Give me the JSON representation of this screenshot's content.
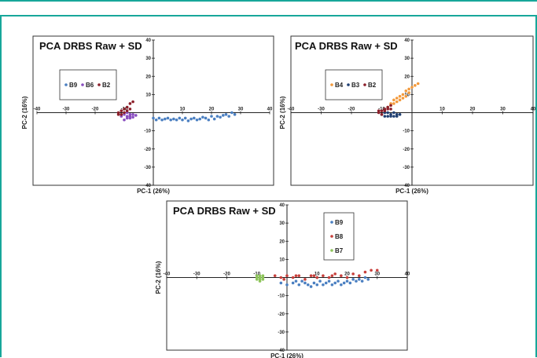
{
  "chart_data": [
    {
      "type": "scatter",
      "title": "PCA DRBS Raw + SD",
      "xlabel": "PC-1 (26%)",
      "ylabel": "PC-2 (16%)",
      "xlim": [
        -40,
        40
      ],
      "ylim": [
        -40,
        40
      ],
      "xticks": [
        "-40",
        "-30",
        "-20",
        "-10",
        "10",
        "20",
        "30",
        "40"
      ],
      "yticks": [
        "40",
        "30",
        "20",
        "10",
        "-10",
        "-20",
        "-30",
        "-40"
      ],
      "legend_position": "top-left",
      "series": [
        {
          "name": "B9",
          "color": "#4a7fc1",
          "points": [
            [
              0,
              -3
            ],
            [
              1,
              -4
            ],
            [
              2,
              -3
            ],
            [
              3,
              -4
            ],
            [
              4,
              -3.5
            ],
            [
              5,
              -3
            ],
            [
              6,
              -4
            ],
            [
              7,
              -3.5
            ],
            [
              8,
              -4
            ],
            [
              9,
              -3
            ],
            [
              10,
              -4
            ],
            [
              11,
              -3
            ],
            [
              12,
              -4.5
            ],
            [
              13,
              -3.5
            ],
            [
              14,
              -3
            ],
            [
              15,
              -4
            ],
            [
              16,
              -3.5
            ],
            [
              17,
              -2.5
            ],
            [
              18,
              -3
            ],
            [
              19,
              -4
            ],
            [
              20,
              -2
            ],
            [
              21,
              -3.5
            ],
            [
              22,
              -2
            ],
            [
              23,
              -2.5
            ],
            [
              24,
              -1.5
            ],
            [
              25,
              -1
            ],
            [
              26,
              -2
            ],
            [
              27,
              0
            ],
            [
              28,
              -1
            ]
          ]
        },
        {
          "name": "B6",
          "color": "#8a4fc0",
          "points": [
            [
              -11,
              -2
            ],
            [
              -10,
              -1
            ],
            [
              -9,
              -3
            ],
            [
              -8,
              -2
            ],
            [
              -7,
              -1
            ],
            [
              -10,
              -4
            ],
            [
              -9,
              -2
            ],
            [
              -8,
              -3
            ],
            [
              -7,
              -2.5
            ],
            [
              -6,
              -1.5
            ],
            [
              -9,
              0
            ],
            [
              -8,
              -1
            ]
          ]
        },
        {
          "name": "B2",
          "color": "#8b1f2a",
          "points": [
            [
              -12,
              0
            ],
            [
              -11,
              1
            ],
            [
              -10,
              2
            ],
            [
              -9,
              3
            ],
            [
              -8,
              5
            ],
            [
              -7,
              6
            ],
            [
              -11,
              -1
            ],
            [
              -10,
              0
            ],
            [
              -9,
              1
            ],
            [
              -12,
              -1
            ],
            [
              -8,
              2
            ]
          ]
        }
      ]
    },
    {
      "type": "scatter",
      "title": "PCA DRBS Raw + SD",
      "xlabel": "PC-1 (26%)",
      "ylabel": "PC-2 (16%)",
      "xlim": [
        -40,
        40
      ],
      "ylim": [
        -40,
        40
      ],
      "xticks": [
        "-40",
        "-30",
        "-20",
        "-10",
        "10",
        "20",
        "30",
        "40"
      ],
      "yticks": [
        "40",
        "30",
        "20",
        "10",
        "-10",
        "-20",
        "-30",
        "-40"
      ],
      "legend_position": "top-left",
      "series": [
        {
          "name": "B4",
          "color": "#f39a3c",
          "points": [
            [
              -8,
              3
            ],
            [
              -7,
              5
            ],
            [
              -6,
              7
            ],
            [
              -5,
              8
            ],
            [
              -4,
              9
            ],
            [
              -3,
              10
            ],
            [
              -2,
              12
            ],
            [
              -1,
              13
            ],
            [
              0,
              14
            ],
            [
              1,
              15
            ],
            [
              2,
              16
            ],
            [
              -6,
              5
            ],
            [
              -4,
              7
            ],
            [
              -3,
              8
            ],
            [
              -2,
              9
            ],
            [
              -1,
              11
            ],
            [
              -5,
              6
            ],
            [
              -7,
              4
            ]
          ]
        },
        {
          "name": "B3",
          "color": "#1f3f72",
          "points": [
            [
              -10,
              -1
            ],
            [
              -9,
              0
            ],
            [
              -8,
              -2
            ],
            [
              -7,
              -1
            ],
            [
              -6,
              -2
            ],
            [
              -5,
              -1
            ],
            [
              -9,
              -2
            ],
            [
              -8,
              0
            ],
            [
              -7,
              -2
            ],
            [
              -6,
              0
            ],
            [
              -5,
              -2
            ],
            [
              -4,
              -1
            ]
          ]
        },
        {
          "name": "B2",
          "color": "#8b1f2a",
          "points": [
            [
              -11,
              0
            ],
            [
              -10,
              1
            ],
            [
              -9,
              2
            ],
            [
              -8,
              3
            ],
            [
              -7,
              4
            ],
            [
              -10,
              -1
            ],
            [
              -9,
              1
            ],
            [
              -8,
              2
            ],
            [
              -11,
              1
            ],
            [
              -7,
              2
            ]
          ]
        }
      ]
    },
    {
      "type": "scatter",
      "title": "PCA DRBS Raw + SD",
      "xlabel": "PC-1 (26%)",
      "ylabel": "PC-2 (16%)",
      "xlim": [
        -40,
        40
      ],
      "ylim": [
        -40,
        40
      ],
      "xticks": [
        "-40",
        "-30",
        "-20",
        "-10",
        "10",
        "20",
        "30",
        "40"
      ],
      "yticks": [
        "40",
        "30",
        "20",
        "10",
        "-10",
        "-20",
        "-30",
        "-40"
      ],
      "legend_position": "top-right",
      "series": [
        {
          "name": "B9",
          "color": "#4a7fc1",
          "points": [
            [
              -2,
              -3
            ],
            [
              0,
              -4
            ],
            [
              2,
              -3
            ],
            [
              4,
              -4
            ],
            [
              6,
              -3
            ],
            [
              8,
              -5
            ],
            [
              9,
              -3
            ],
            [
              10,
              -4
            ],
            [
              11,
              -2
            ],
            [
              12,
              -4
            ],
            [
              13,
              -3
            ],
            [
              14,
              -2
            ],
            [
              15,
              -4
            ],
            [
              16,
              -3
            ],
            [
              17,
              -2
            ],
            [
              18,
              -4
            ],
            [
              19,
              -3
            ],
            [
              20,
              -2
            ],
            [
              21,
              -3
            ],
            [
              22,
              -1
            ],
            [
              23,
              -2
            ],
            [
              24,
              -1
            ],
            [
              25,
              -2
            ],
            [
              26,
              0
            ],
            [
              27,
              -1
            ],
            [
              5,
              -2
            ],
            [
              7,
              -4
            ],
            [
              3,
              -2
            ]
          ]
        },
        {
          "name": "B8",
          "color": "#c8403c",
          "points": [
            [
              -4,
              1
            ],
            [
              -2,
              0
            ],
            [
              0,
              1
            ],
            [
              2,
              0
            ],
            [
              4,
              1
            ],
            [
              6,
              -1
            ],
            [
              8,
              1
            ],
            [
              10,
              0
            ],
            [
              12,
              1
            ],
            [
              14,
              0
            ],
            [
              15,
              1
            ],
            [
              16,
              2
            ],
            [
              18,
              1
            ],
            [
              20,
              0
            ],
            [
              22,
              2
            ],
            [
              24,
              1
            ],
            [
              26,
              3
            ],
            [
              28,
              4
            ],
            [
              30,
              4
            ],
            [
              -1,
              -1
            ],
            [
              3,
              1
            ],
            [
              9,
              1
            ]
          ]
        },
        {
          "name": "B7",
          "color": "#8dc45a",
          "points": [
            [
              -10,
              -1
            ],
            [
              -9,
              0
            ],
            [
              -8,
              -1
            ],
            [
              -10,
              0
            ],
            [
              -9,
              -1
            ],
            [
              -8,
              0
            ],
            [
              -9,
              1
            ],
            [
              -10,
              1
            ],
            [
              -8,
              1
            ],
            [
              -9,
              -2
            ]
          ]
        }
      ]
    }
  ]
}
